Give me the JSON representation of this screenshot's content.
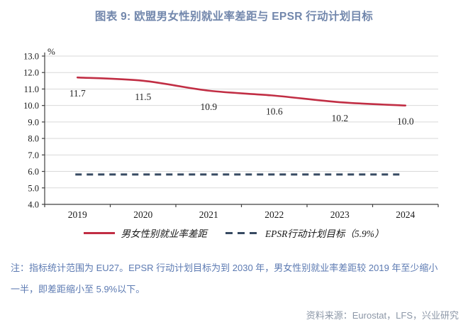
{
  "title": "图表 9: 欧盟男女性别就业率差距与 EPSR 行动计划目标",
  "chart_data": {
    "type": "line",
    "categories": [
      "2019",
      "2020",
      "2021",
      "2022",
      "2023",
      "2024"
    ],
    "series": [
      {
        "name": "男女性别就业率差距",
        "values": [
          11.7,
          11.5,
          10.9,
          10.6,
          10.2,
          10.0
        ],
        "style": "solid",
        "color": "#C12E44"
      },
      {
        "name": "EPSR行动计划目标（5.9%）",
        "values": [
          5.9,
          5.9,
          5.9,
          5.9,
          5.9,
          5.9
        ],
        "style": "dashed",
        "color": "#374A62"
      }
    ],
    "data_labels": [
      "11.7",
      "11.5",
      "10.9",
      "10.6",
      "10.2",
      "10.0"
    ],
    "unit_label": "%",
    "ylim": [
      4.0,
      13.0
    ],
    "ytick_step": 1.0,
    "grid": "horizontal-only",
    "legend_position": "bottom"
  },
  "legend": {
    "series_label": "男女性别就业率差距",
    "target_label": "EPSR行动计划目标（5.9%）"
  },
  "note": {
    "line1": "注：指标统计范围为 EU27。EPSR 行动计划目标为到 2030 年，男女性别就业率差距较 2019 年至少缩小",
    "line2": "一半，即差距缩小至 5.9%以下。"
  },
  "source": "资料来源：Eurostat，LFS，兴业研究",
  "colors": {
    "title": "#7287AC",
    "note": "#5C7AB2",
    "source": "#8C97A7",
    "series_line": "#C12E44",
    "target_line": "#374A62",
    "gridline": "#D9D9D9",
    "axis": "#404040",
    "tick_label": "#1A1A1A"
  }
}
